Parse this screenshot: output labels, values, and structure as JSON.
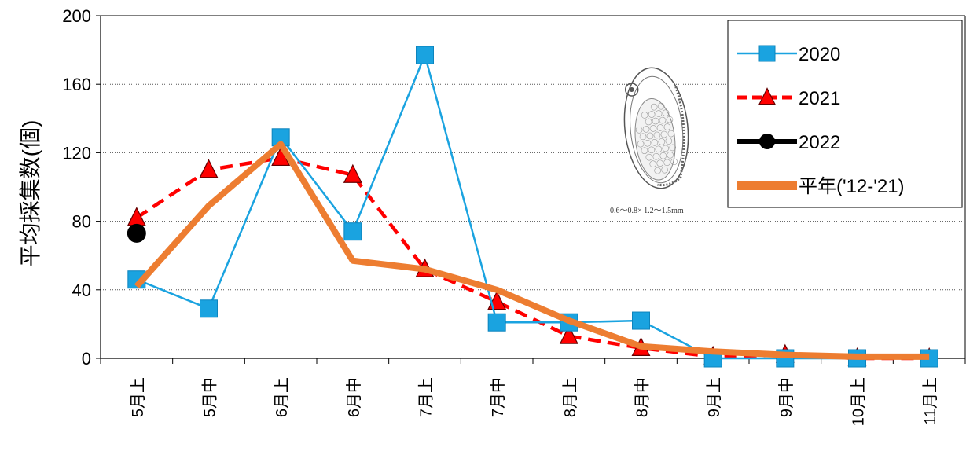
{
  "chart_data": {
    "type": "line",
    "title": "",
    "xlabel": "",
    "ylabel": "平均採集数(個)",
    "ylim": [
      0,
      200
    ],
    "yticks": [
      0,
      40,
      80,
      120,
      160,
      200
    ],
    "grid": "horizontal-dotted",
    "legend_position": "top-right",
    "categories": [
      "5月上",
      "5月中",
      "6月上",
      "6月中",
      "7月上",
      "7月中",
      "8月上",
      "8月中",
      "9月上",
      "9月中",
      "10月上",
      "11月上"
    ],
    "series": [
      {
        "name": "2020",
        "color": "#1aa3e0",
        "marker": "square",
        "line": "solid",
        "values": [
          46,
          29,
          129,
          74,
          177,
          21,
          21,
          22,
          0,
          0,
          0,
          0
        ]
      },
      {
        "name": "2021",
        "color": "#ff0000",
        "marker": "triangle",
        "line": "dashed",
        "values": [
          82,
          110,
          117,
          107,
          52,
          33,
          13,
          6,
          1,
          2,
          0,
          0
        ]
      },
      {
        "name": "2022",
        "color": "#000000",
        "marker": "circle",
        "line": "solid",
        "values": [
          73,
          null,
          null,
          null,
          null,
          null,
          null,
          null,
          null,
          null,
          null,
          null
        ]
      },
      {
        "name": "平年('12-'21)",
        "color": "#ed7d31",
        "marker": "none",
        "line": "thick",
        "values": [
          42,
          89,
          125,
          57,
          52,
          40,
          22,
          7,
          4,
          2,
          1,
          1
        ]
      }
    ],
    "annotation": {
      "icon": "egg-illustration-icon",
      "caption": "0.6～0.8×  1.2～1.5mm"
    }
  }
}
